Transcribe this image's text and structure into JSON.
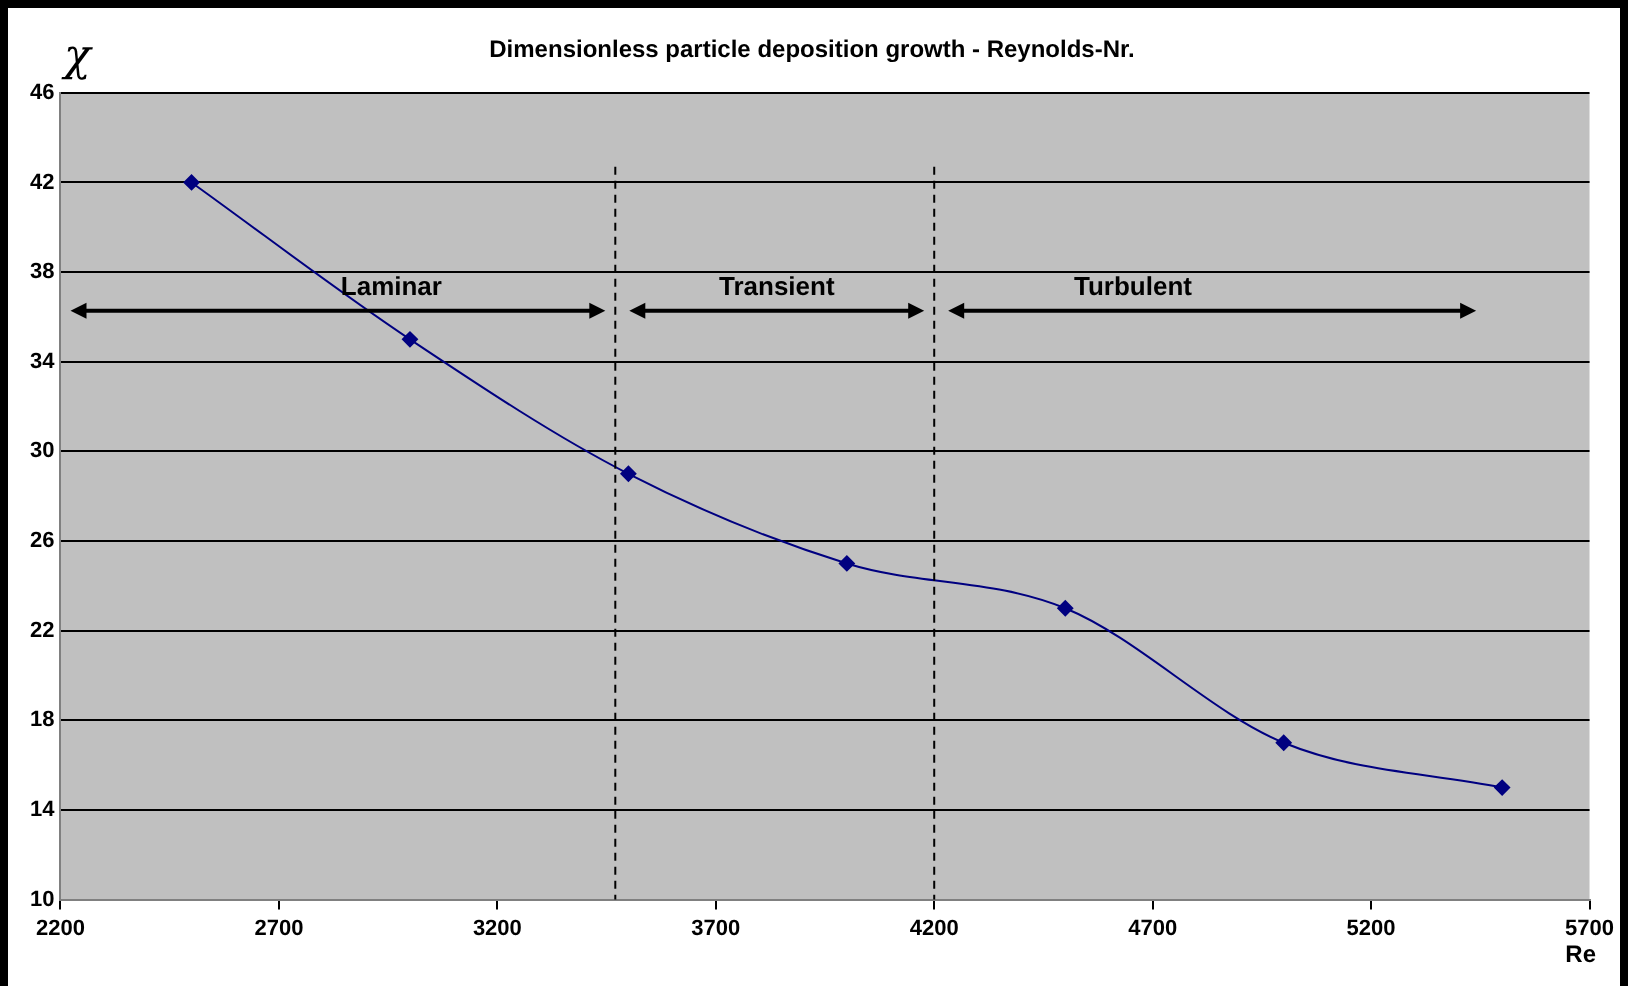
{
  "chart_data": {
    "type": "line",
    "title": "Dimensionless particle deposition growth - Reynolds-Nr.",
    "xlabel": "Re",
    "ylabel": "χ",
    "x": [
      2500,
      3000,
      3500,
      4000,
      4500,
      5000,
      5500
    ],
    "series": [
      {
        "color": "#000080",
        "values": [
          42,
          35,
          29,
          25,
          23,
          17,
          15
        ]
      }
    ],
    "xlim": [
      2200,
      5700
    ],
    "xticks": [
      2200,
      2700,
      3200,
      3700,
      4200,
      4700,
      5200,
      5700
    ],
    "ylim": [
      10,
      46
    ],
    "yticks": [
      10,
      14,
      18,
      22,
      26,
      30,
      34,
      38,
      42,
      46
    ],
    "grid": "y",
    "legend": false,
    "marker": "diamond",
    "line_style": "solid",
    "ref_lines": [
      {
        "axis": "x",
        "value": 3470,
        "line_style": "dashed",
        "color": "#000000"
      },
      {
        "axis": "x",
        "value": 4200,
        "line_style": "dashed",
        "color": "#000000"
      }
    ],
    "annotations": [
      "Laminar",
      "Transient",
      "Turbulent"
    ]
  }
}
